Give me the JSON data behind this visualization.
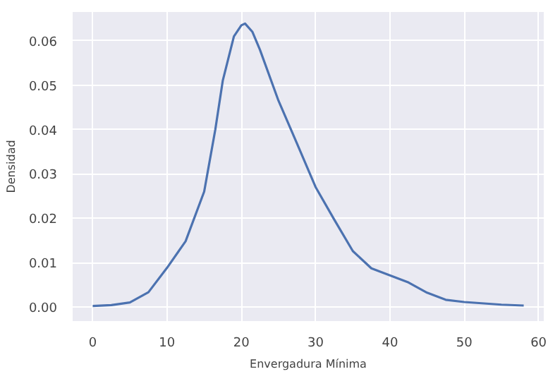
{
  "chart_data": {
    "type": "line",
    "xlabel": "Envergadura Mínima",
    "ylabel": "Densidad",
    "x": [
      0,
      2.5,
      5,
      7.5,
      10,
      12.5,
      15,
      16.5,
      17.5,
      19,
      20,
      20.5,
      21.5,
      22.5,
      25,
      27.5,
      30,
      32.5,
      35,
      37.5,
      40,
      42.5,
      45,
      47.5,
      50,
      55,
      58
    ],
    "series": [
      {
        "color": "#4c72b0",
        "values": [
          0.0002,
          0.0004,
          0.001,
          0.0033,
          0.0088,
          0.0148,
          0.026,
          0.04,
          0.051,
          0.061,
          0.0635,
          0.0639,
          0.062,
          0.058,
          0.0465,
          0.0368,
          0.027,
          0.0197,
          0.0126,
          0.0087,
          0.0071,
          0.0055,
          0.0032,
          0.0016,
          0.0011,
          0.0005,
          0.0003
        ]
      }
    ],
    "xlim": [
      -2.7,
      60.7
    ],
    "ylim": [
      -0.0032,
      0.0665
    ],
    "xticks": [
      0,
      10,
      20,
      30,
      40,
      50,
      60
    ],
    "yticks": [
      {
        "value": 0,
        "label": "0.00"
      },
      {
        "value": 0.01,
        "label": "0.01"
      },
      {
        "value": 0.02,
        "label": "0.02"
      },
      {
        "value": 0.03,
        "label": "0.03"
      },
      {
        "value": 0.04,
        "label": "0.04"
      },
      {
        "value": 0.05,
        "label": "0.05"
      },
      {
        "value": 0.06,
        "label": "0.06"
      }
    ],
    "grid": true,
    "line_style": "solid"
  }
}
